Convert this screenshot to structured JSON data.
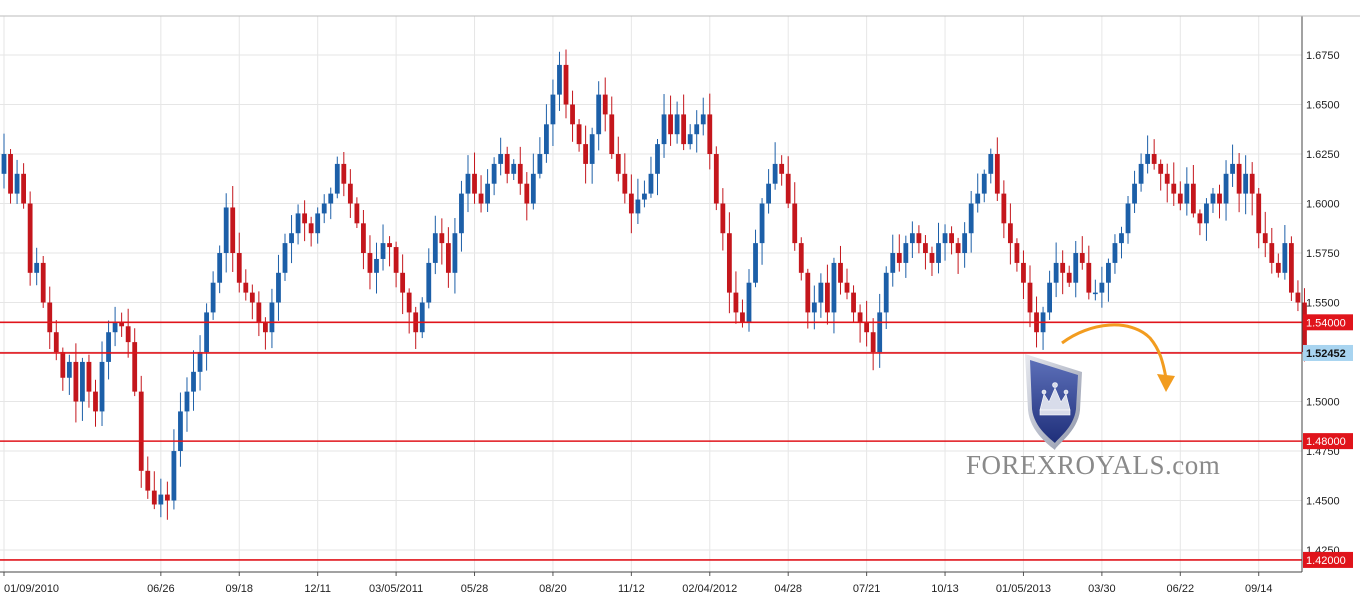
{
  "chart_data": {
    "type": "candlestick",
    "title": "",
    "ylim": [
      1.4139,
      1.6947
    ],
    "y_ticks": [
      "1.6750",
      "1.6500",
      "1.6250",
      "1.6000",
      "1.5750",
      "1.5500",
      "1.5250",
      "1.5000",
      "1.4750",
      "1.4500",
      "1.4250"
    ],
    "x_ticks": [
      "01/09/2010",
      "06/26",
      "09/18",
      "12/11",
      "03/05/2011",
      "05/28",
      "08/20",
      "11/12",
      "02/04/2012",
      "04/28",
      "07/21",
      "10/13",
      "01/05/2013",
      "03/30",
      "06/22",
      "09/14"
    ],
    "x_tick_weeks": [
      0,
      24,
      36,
      48,
      60,
      72,
      84,
      96,
      108,
      120,
      132,
      144,
      156,
      168,
      180,
      192
    ],
    "horizontal_levels": [
      {
        "value": 1.54,
        "label": "1.54000",
        "style": "red"
      },
      {
        "value": 1.52452,
        "label": "1.52452",
        "style": "current"
      },
      {
        "value": 1.48,
        "label": "1.48000",
        "style": "red"
      },
      {
        "value": 1.42,
        "label": "1.42000",
        "style": "red"
      }
    ],
    "grid": true,
    "bull_color": "#1c5fa8",
    "bear_color": "#c4161c",
    "level_color": "#e0141b",
    "current_label_color": "#a8d4f0",
    "closes": [
      1.625,
      1.605,
      1.615,
      1.6,
      1.565,
      1.57,
      1.55,
      1.535,
      1.525,
      1.512,
      1.52,
      1.5,
      1.52,
      1.505,
      1.495,
      1.52,
      1.535,
      1.54,
      1.538,
      1.53,
      1.505,
      1.465,
      1.455,
      1.448,
      1.453,
      1.45,
      1.475,
      1.495,
      1.505,
      1.515,
      1.525,
      1.545,
      1.56,
      1.575,
      1.598,
      1.575,
      1.56,
      1.555,
      1.55,
      1.54,
      1.535,
      1.55,
      1.565,
      1.58,
      1.585,
      1.595,
      1.59,
      1.585,
      1.595,
      1.6,
      1.605,
      1.62,
      1.61,
      1.6,
      1.59,
      1.575,
      1.565,
      1.572,
      1.58,
      1.578,
      1.565,
      1.555,
      1.545,
      1.535,
      1.55,
      1.57,
      1.585,
      1.58,
      1.565,
      1.585,
      1.605,
      1.615,
      1.605,
      1.6,
      1.61,
      1.62,
      1.625,
      1.615,
      1.62,
      1.61,
      1.6,
      1.615,
      1.625,
      1.64,
      1.655,
      1.67,
      1.65,
      1.64,
      1.63,
      1.62,
      1.635,
      1.655,
      1.645,
      1.625,
      1.615,
      1.605,
      1.595,
      1.602,
      1.605,
      1.615,
      1.63,
      1.645,
      1.635,
      1.645,
      1.63,
      1.635,
      1.64,
      1.645,
      1.625,
      1.6,
      1.585,
      1.555,
      1.545,
      1.54,
      1.56,
      1.58,
      1.6,
      1.61,
      1.62,
      1.615,
      1.6,
      1.58,
      1.565,
      1.545,
      1.55,
      1.56,
      1.545,
      1.57,
      1.56,
      1.555,
      1.545,
      1.54,
      1.535,
      1.525,
      1.545,
      1.565,
      1.575,
      1.57,
      1.58,
      1.585,
      1.58,
      1.575,
      1.57,
      1.58,
      1.585,
      1.58,
      1.575,
      1.585,
      1.6,
      1.605,
      1.615,
      1.625,
      1.605,
      1.59,
      1.58,
      1.57,
      1.56,
      1.545,
      1.535,
      1.545,
      1.56,
      1.57,
      1.565,
      1.56,
      1.575,
      1.57,
      1.555,
      1.555,
      1.56,
      1.57,
      1.58,
      1.585,
      1.6,
      1.61,
      1.62,
      1.625,
      1.62,
      1.615,
      1.61,
      1.605,
      1.6,
      1.61,
      1.595,
      1.59,
      1.6,
      1.605,
      1.6,
      1.615,
      1.62,
      1.605,
      1.615,
      1.605,
      1.585,
      1.58,
      1.57,
      1.565,
      1.58,
      1.555,
      1.55,
      1.525
    ],
    "annotations": [
      "FOREXROYALS.com"
    ]
  }
}
